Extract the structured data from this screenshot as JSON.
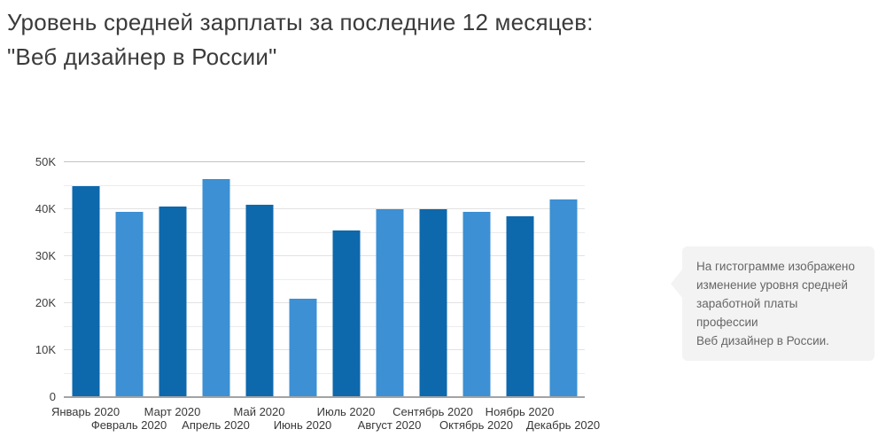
{
  "title": {
    "line1": "Уровень средней зарплаты за последние 12 месяцев:",
    "line2": "\"Веб дизайнер в России\""
  },
  "note": {
    "lines": [
      "На гистограмме изображено",
      "изменение уровня средней",
      "заработной платы профессии",
      "Веб дизайнер в России."
    ]
  },
  "chart_data": {
    "type": "bar",
    "title": "Уровень средней зарплаты за последние 12 месяцев: \"Веб дизайнер в России\"",
    "categories": [
      "Январь 2020",
      "Февраль 2020",
      "Март 2020",
      "Апрель 2020",
      "Май 2020",
      "Июнь 2020",
      "Июль 2020",
      "Август 2020",
      "Сентябрь 2020",
      "Октябрь 2020",
      "Ноябрь 2020",
      "Декабрь 2020"
    ],
    "values": [
      45000,
      39500,
      40500,
      46500,
      41000,
      21000,
      35500,
      40000,
      40000,
      39500,
      38500,
      42000
    ],
    "xlabel": "",
    "ylabel": "",
    "ylim": [
      0,
      50000
    ],
    "yticks": [
      0,
      10000,
      20000,
      30000,
      40000,
      50000
    ],
    "ytick_labels": [
      "0",
      "10K",
      "20K",
      "30K",
      "40K",
      "50K"
    ],
    "minor_grid_step": 5000,
    "grid": "horizontal",
    "legend": false,
    "x_label_layout": "staggered-two-rows",
    "colors": {
      "bar_dark": "#0e68ac",
      "bar_light": "#3c90d3",
      "gridline": "#e2e2e2",
      "axis_line": "#a3a3a3"
    }
  }
}
